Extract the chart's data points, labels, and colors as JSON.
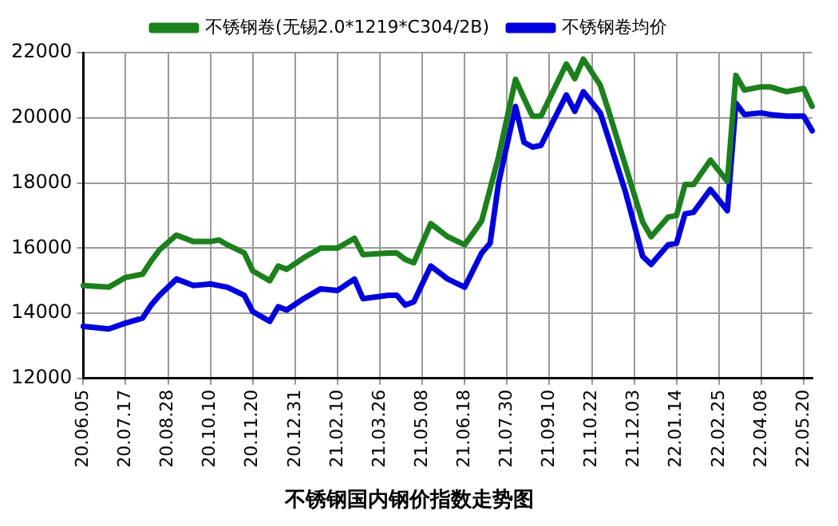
{
  "chart_data": {
    "type": "line",
    "title": "不锈钢国内钢价指数走势图",
    "categories": [
      "20.06.05",
      null,
      null,
      null,
      null,
      "20.07.17",
      null,
      null,
      null,
      null,
      "20.08.28",
      null,
      null,
      null,
      null,
      "20.10.10",
      null,
      null,
      null,
      null,
      "20.11.20",
      null,
      null,
      null,
      null,
      "20.12.31",
      null,
      null,
      null,
      null,
      "21.02.10",
      null,
      null,
      null,
      null,
      "21.03.26",
      null,
      null,
      null,
      null,
      "21.05.08",
      null,
      null,
      null,
      null,
      "21.06.18",
      null,
      null,
      null,
      null,
      "21.07.30",
      null,
      null,
      null,
      null,
      "21.09.10",
      null,
      null,
      null,
      null,
      "21.10.22",
      null,
      null,
      null,
      null,
      "21.12.03",
      null,
      null,
      null,
      null,
      "22.01.14",
      null,
      null,
      null,
      null,
      "22.02.25",
      null,
      null,
      null,
      null,
      "22.04.08",
      null,
      null,
      null,
      null,
      "22.05.20",
      null
    ],
    "series": [
      {
        "name": "不锈钢卷(无锡2.0*1219*C304/2B)",
        "color": "#1c801c",
        "values": [
          14850,
          null,
          null,
          14800,
          null,
          15100,
          null,
          15200,
          15600,
          15950,
          null,
          16400,
          null,
          16200,
          null,
          16200,
          16250,
          16100,
          null,
          15850,
          15300,
          null,
          15000,
          15450,
          15350,
          null,
          15700,
          null,
          16000,
          null,
          16000,
          null,
          16300,
          15800,
          null,
          null,
          15850,
          15850,
          15650,
          15550,
          null,
          16750,
          null,
          16350,
          null,
          16100,
          null,
          16830,
          null,
          18800,
          null,
          21180,
          20600,
          20050,
          20050,
          null,
          null,
          21650,
          21200,
          21800,
          null,
          21000,
          20200,
          null,
          18500,
          null,
          16800,
          16350,
          null,
          16950,
          17000,
          17950,
          17950,
          null,
          18700,
          null,
          18050,
          21300,
          20850,
          null,
          20950,
          20950,
          null,
          20800,
          null,
          20900,
          20350
        ]
      },
      {
        "name": "不锈钢卷均价",
        "color": "#0000dd",
        "values": [
          13600,
          null,
          null,
          13520,
          null,
          13700,
          null,
          13850,
          14250,
          14550,
          null,
          15050,
          null,
          14850,
          null,
          14900,
          14850,
          14800,
          null,
          14550,
          14050,
          null,
          13750,
          14200,
          14100,
          null,
          14450,
          null,
          14750,
          null,
          14700,
          null,
          15050,
          14450,
          null,
          null,
          14550,
          14550,
          14250,
          14350,
          null,
          15450,
          null,
          15050,
          null,
          14800,
          null,
          15850,
          16150,
          18000,
          null,
          20350,
          19250,
          19100,
          19150,
          null,
          null,
          20700,
          20200,
          20800,
          null,
          20150,
          19350,
          null,
          17700,
          null,
          15750,
          15500,
          null,
          16100,
          16150,
          17050,
          17100,
          null,
          17800,
          null,
          17150,
          20450,
          20100,
          null,
          20150,
          20100,
          null,
          20050,
          null,
          20050,
          19600
        ]
      }
    ],
    "ylim": [
      12000,
      22000
    ],
    "yticks": [
      12000,
      14000,
      16000,
      18000,
      20000,
      22000
    ],
    "grid": true,
    "legend": "top",
    "marker": "none",
    "line_style": "solid"
  }
}
